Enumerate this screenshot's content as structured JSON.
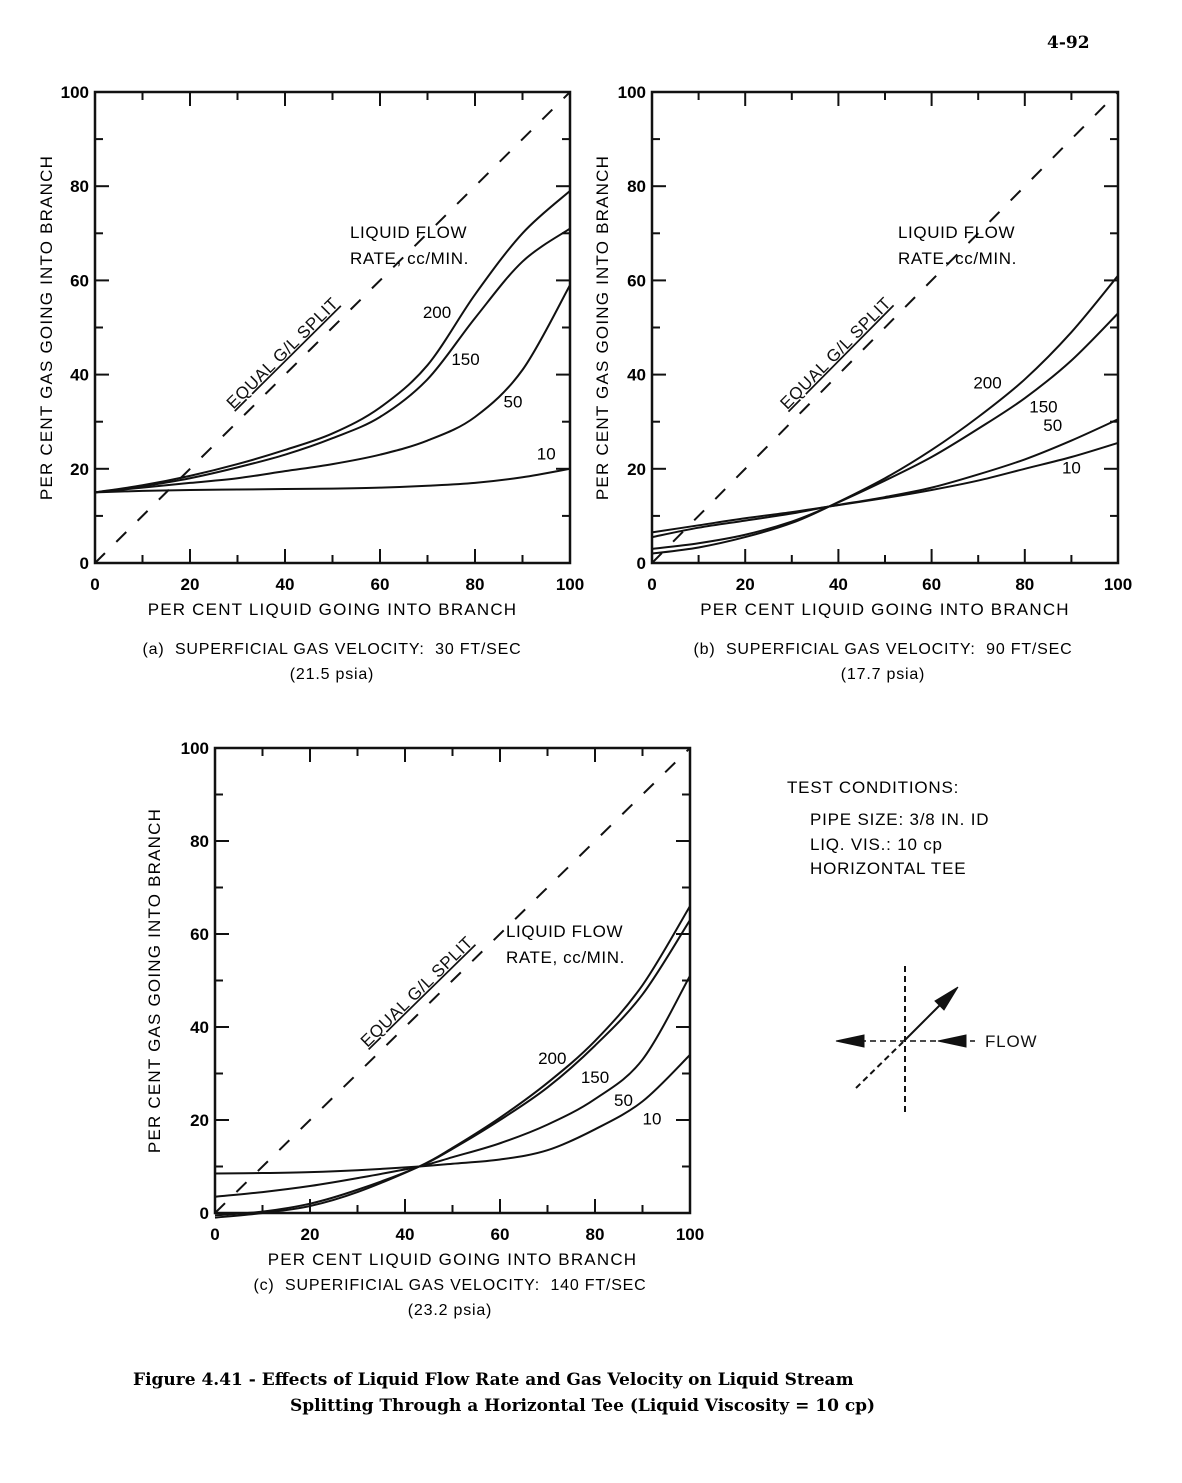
{
  "page_number": "4-92",
  "figure_caption": {
    "line1": "Figure 4.41 - Effects of Liquid Flow Rate and Gas Velocity on Liquid Stream",
    "line2": "Splitting Through a Horizontal Tee (Liquid Viscosity = 10 cp)"
  },
  "test_conditions": {
    "title": "TEST CONDITIONS:",
    "lines": [
      "PIPE SIZE: 3/8 IN. ID",
      "LIQ. VIS.: 10 cp",
      "HORIZONTAL TEE"
    ]
  },
  "tee_diagram": {
    "flow_label": "FLOW"
  },
  "chart_data": [
    {
      "id": "a",
      "type": "line",
      "title": "(a)  SUPERFICIAL GAS VELOCITY:  30 FT/SEC",
      "subtitle": "(21.5 psia)",
      "xlabel": "PER CENT LIQUID GOING INTO BRANCH",
      "ylabel": "PER CENT GAS GOING INTO BRANCH",
      "xlim": [
        0,
        100
      ],
      "ylim": [
        0,
        100
      ],
      "xticks": [
        "0",
        "20",
        "40",
        "60",
        "80",
        "100"
      ],
      "yticks": [
        "0",
        "20",
        "40",
        "60",
        "80",
        "100"
      ],
      "annotation": [
        "LIQUID FLOW",
        "RATE, cc/MIN."
      ],
      "reference_line": {
        "label": "EQUAL G/L SPLIT",
        "x": [
          0,
          100
        ],
        "y": [
          0,
          100
        ]
      },
      "series": [
        {
          "name": "200",
          "x": [
            0,
            10,
            20,
            30,
            40,
            50,
            60,
            70,
            80,
            90,
            100
          ],
          "y": [
            15,
            16.5,
            18.5,
            21,
            24,
            27.5,
            33,
            42,
            57,
            70,
            79
          ]
        },
        {
          "name": "150",
          "x": [
            0,
            10,
            20,
            30,
            40,
            50,
            60,
            70,
            80,
            90,
            100
          ],
          "y": [
            15,
            16.3,
            18,
            20.3,
            23,
            26.5,
            31,
            39,
            52,
            64,
            71
          ]
        },
        {
          "name": "50",
          "x": [
            0,
            10,
            20,
            30,
            40,
            50,
            60,
            70,
            80,
            90,
            100
          ],
          "y": [
            15,
            16,
            17,
            18,
            19.5,
            21,
            23,
            26,
            31,
            41,
            59
          ]
        },
        {
          "name": "10",
          "x": [
            0,
            10,
            20,
            30,
            40,
            50,
            60,
            70,
            80,
            90,
            100
          ],
          "y": [
            15,
            15.3,
            15.5,
            15.6,
            15.7,
            15.8,
            16,
            16.4,
            17,
            18.2,
            20
          ]
        }
      ],
      "curve_label_pos": [
        [
          72,
          52
        ],
        [
          78,
          42
        ],
        [
          88,
          33
        ],
        [
          95,
          22
        ]
      ]
    },
    {
      "id": "b",
      "type": "line",
      "title": "(b)  SUPERFICIAL GAS VELOCITY:  90 FT/SEC",
      "subtitle": "(17.7 psia)",
      "xlabel": "PER CENT LIQUID GOING INTO BRANCH",
      "ylabel": "PER CENT GAS GOING INTO BRANCH",
      "xlim": [
        0,
        100
      ],
      "ylim": [
        0,
        100
      ],
      "xticks": [
        "0",
        "20",
        "40",
        "60",
        "80",
        "100"
      ],
      "yticks": [
        "0",
        "20",
        "40",
        "60",
        "80",
        "100"
      ],
      "annotation": [
        "LIQUID FLOW",
        "RATE, cc/MIN."
      ],
      "reference_line": {
        "label": "EQUAL G/L SPLIT",
        "x": [
          0,
          100
        ],
        "y": [
          0,
          100
        ]
      },
      "series": [
        {
          "name": "200",
          "x": [
            0,
            10,
            20,
            30,
            38,
            50,
            60,
            70,
            80,
            90,
            100
          ],
          "y": [
            2,
            3.3,
            5.5,
            8.5,
            12,
            18,
            24,
            31,
            39,
            49,
            61
          ]
        },
        {
          "name": "150",
          "x": [
            0,
            10,
            20,
            30,
            38,
            50,
            60,
            70,
            80,
            90,
            100
          ],
          "y": [
            3,
            4.2,
            6,
            8.8,
            12,
            17.5,
            22.5,
            28.5,
            35,
            43,
            53
          ]
        },
        {
          "name": "50",
          "x": [
            0,
            10,
            20,
            30,
            38,
            50,
            60,
            70,
            80,
            90,
            100
          ],
          "y": [
            5.5,
            7.5,
            9,
            10.5,
            12,
            14,
            16,
            18.8,
            22,
            26,
            30.5
          ]
        },
        {
          "name": "10",
          "x": [
            0,
            10,
            20,
            30,
            38,
            50,
            60,
            70,
            80,
            90,
            100
          ],
          "y": [
            6.5,
            8,
            9.5,
            10.8,
            12,
            13.8,
            15.5,
            17.5,
            20,
            22.5,
            25.5
          ]
        }
      ],
      "curve_label_pos": [
        [
          72,
          37
        ],
        [
          84,
          32
        ],
        [
          86,
          28
        ],
        [
          90,
          19
        ]
      ]
    },
    {
      "id": "c",
      "type": "line",
      "title": "(c)  SUPERIFICIAL GAS VELOCITY:  140 FT/SEC",
      "subtitle": "(23.2 psia)",
      "xlabel": "PER CENT LIQUID GOING INTO BRANCH",
      "ylabel": "PER CENT GAS GOING INTO BRANCH",
      "xlim": [
        0,
        100
      ],
      "ylim": [
        0,
        100
      ],
      "xticks": [
        "0",
        "20",
        "40",
        "60",
        "80",
        "100"
      ],
      "yticks": [
        "0",
        "20",
        "40",
        "60",
        "80",
        "100"
      ],
      "annotation": [
        "LIQUID FLOW",
        "RATE, cc/MIN."
      ],
      "reference_line": {
        "label": "EQUAL G/L SPLIT",
        "x": [
          0,
          100
        ],
        "y": [
          0,
          100
        ]
      },
      "series": [
        {
          "name": "200",
          "x": [
            0,
            10,
            20,
            30,
            43,
            50,
            60,
            70,
            80,
            90,
            100
          ],
          "y": [
            -1,
            0,
            1.5,
            4.5,
            10,
            14,
            20.5,
            28,
            37,
            49,
            66
          ]
        },
        {
          "name": "150",
          "x": [
            0,
            10,
            20,
            30,
            43,
            50,
            60,
            70,
            80,
            90,
            100
          ],
          "y": [
            -0.5,
            0.3,
            2,
            5,
            10,
            13.8,
            20,
            27,
            36,
            47,
            63
          ]
        },
        {
          "name": "50",
          "x": [
            0,
            10,
            20,
            30,
            43,
            50,
            60,
            70,
            80,
            90,
            100
          ],
          "y": [
            3.5,
            4.5,
            5.8,
            7.5,
            10,
            12,
            15,
            19,
            24.5,
            33,
            51
          ]
        },
        {
          "name": "10",
          "x": [
            0,
            10,
            20,
            30,
            43,
            50,
            60,
            70,
            80,
            90,
            100
          ],
          "y": [
            8.5,
            8.6,
            8.8,
            9.2,
            10,
            10.6,
            11.5,
            13.5,
            18,
            24,
            34
          ]
        }
      ],
      "curve_label_pos": [
        [
          71,
          32
        ],
        [
          80,
          28
        ],
        [
          86,
          23
        ],
        [
          92,
          19
        ]
      ]
    }
  ]
}
